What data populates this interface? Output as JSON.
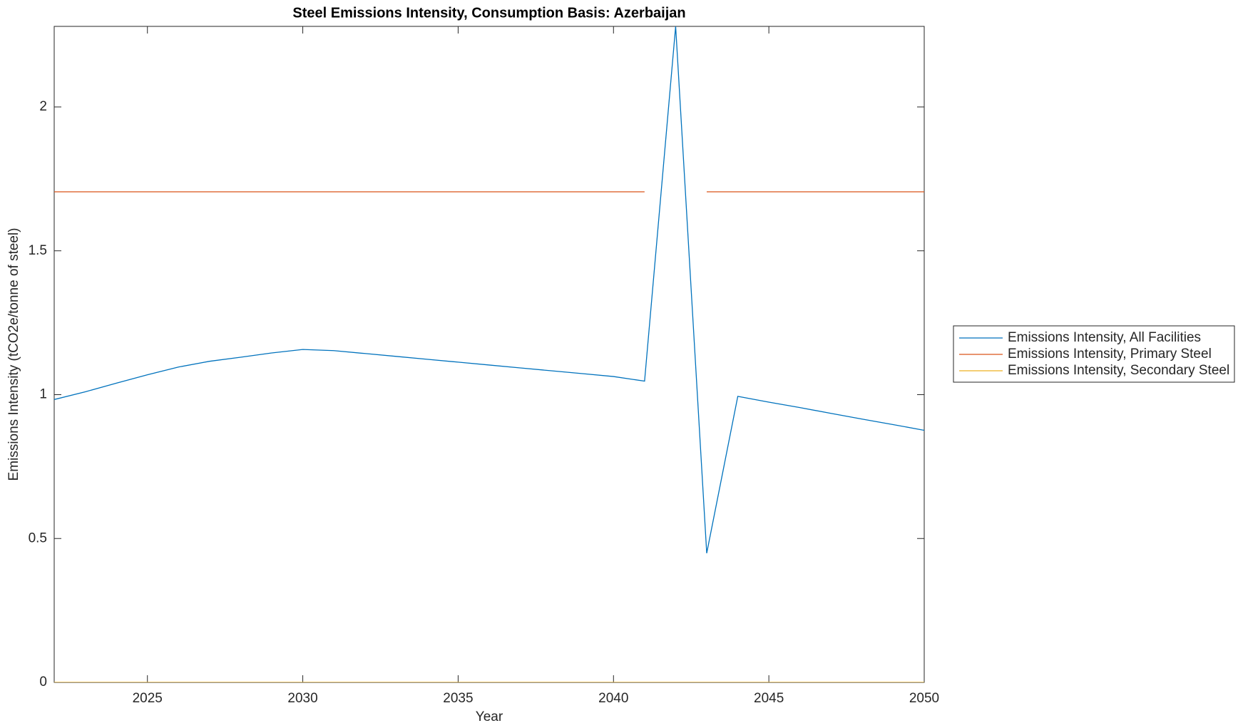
{
  "chart_data": {
    "type": "line",
    "title": "Steel Emissions Intensity, Consumption Basis: Azerbaijan",
    "x_label": "Year",
    "y_label": "Emissions Intensity (tCO2e/tonne of steel)",
    "x": [
      2022,
      2023,
      2024,
      2025,
      2026,
      2027,
      2028,
      2029,
      2030,
      2031,
      2032,
      2033,
      2034,
      2035,
      2036,
      2037,
      2038,
      2039,
      2040,
      2041,
      2042,
      2043,
      2044,
      2045,
      2046,
      2047,
      2048,
      2049,
      2050
    ],
    "series": [
      {
        "name": "Emissions Intensity, All Facilities",
        "color": "#0072bd",
        "values": [
          0.983,
          1.01,
          1.04,
          1.069,
          1.096,
          1.116,
          1.13,
          1.145,
          1.157,
          1.153,
          1.143,
          1.133,
          1.123,
          1.113,
          1.103,
          1.093,
          1.083,
          1.073,
          1.063,
          1.047,
          2.28,
          0.449,
          0.994,
          0.974,
          0.955,
          0.935,
          0.915,
          0.896,
          0.876
        ]
      },
      {
        "name": "Emissions Intensity, Primary Steel",
        "color": "#d95319",
        "values": [
          1.705,
          1.705,
          1.705,
          1.705,
          1.705,
          1.705,
          1.705,
          1.705,
          1.705,
          1.705,
          1.705,
          1.705,
          1.705,
          1.705,
          1.705,
          1.705,
          1.705,
          1.705,
          1.705,
          1.705,
          null,
          1.705,
          1.705,
          1.705,
          1.705,
          1.705,
          1.705,
          1.705,
          1.705
        ]
      },
      {
        "name": "Emissions Intensity, Secondary Steel",
        "color": "#edb120",
        "values": [
          0,
          0,
          0,
          0,
          0,
          0,
          0,
          0,
          0,
          0,
          0,
          0,
          0,
          0,
          0,
          0,
          0,
          0,
          0,
          0,
          0,
          0,
          0,
          0,
          0,
          0,
          0,
          0,
          0
        ]
      }
    ],
    "xlim": [
      2022,
      2050
    ],
    "xticks": [
      2025,
      2030,
      2035,
      2040,
      2045,
      2050
    ],
    "ylim": [
      0,
      2.28
    ],
    "yticks": [
      0,
      0.5,
      1,
      1.5,
      2
    ],
    "legend": "outside-right"
  }
}
